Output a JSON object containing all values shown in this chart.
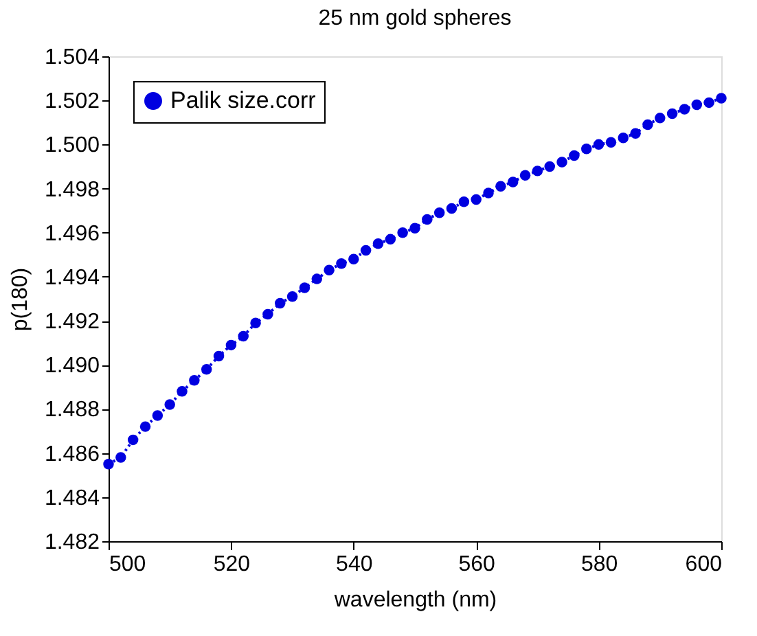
{
  "chart_data": {
    "type": "line",
    "title": "25 nm gold spheres",
    "xlabel": "wavelength (nm)",
    "ylabel": "p(180)",
    "x": [
      500,
      502,
      504,
      506,
      508,
      510,
      512,
      514,
      516,
      518,
      520,
      522,
      524,
      526,
      528,
      530,
      532,
      534,
      536,
      538,
      540,
      542,
      544,
      546,
      548,
      550,
      552,
      554,
      556,
      558,
      560,
      562,
      564,
      566,
      568,
      570,
      572,
      574,
      576,
      578,
      580,
      582,
      584,
      586,
      588,
      590,
      592,
      594,
      596,
      598,
      600
    ],
    "series": [
      {
        "name": "Palik size.corr",
        "color": "#0000e0",
        "values": [
          1.4855,
          1.4858,
          1.4866,
          1.4872,
          1.4877,
          1.4882,
          1.4888,
          1.4893,
          1.4898,
          1.4904,
          1.4909,
          1.4913,
          1.4919,
          1.4923,
          1.4928,
          1.4931,
          1.4935,
          1.4939,
          1.4943,
          1.4946,
          1.4948,
          1.4952,
          1.4955,
          1.4957,
          1.496,
          1.4962,
          1.4966,
          1.4969,
          1.4971,
          1.4974,
          1.4975,
          1.4978,
          1.4981,
          1.4983,
          1.4986,
          1.4988,
          1.499,
          1.4992,
          1.4995,
          1.4998,
          1.5,
          1.5001,
          1.5003,
          1.5005,
          1.5009,
          1.5012,
          1.5014,
          1.5016,
          1.5018,
          1.5019,
          1.5021
        ]
      }
    ],
    "xlim": [
      500,
      600
    ],
    "xticks": [
      500,
      520,
      540,
      560,
      580,
      600
    ],
    "ylim": [
      1.482,
      1.504
    ],
    "yticks": [
      1.482,
      1.484,
      1.486,
      1.488,
      {
        "value": 1.49,
        "label": "1.490"
      },
      1.492,
      1.494,
      1.496,
      1.498,
      {
        "value": 1.5,
        "label": "1.500"
      },
      1.502,
      1.504
    ],
    "legend": "top left",
    "marker": "circle",
    "line_style": "dotted",
    "grid": false
  }
}
